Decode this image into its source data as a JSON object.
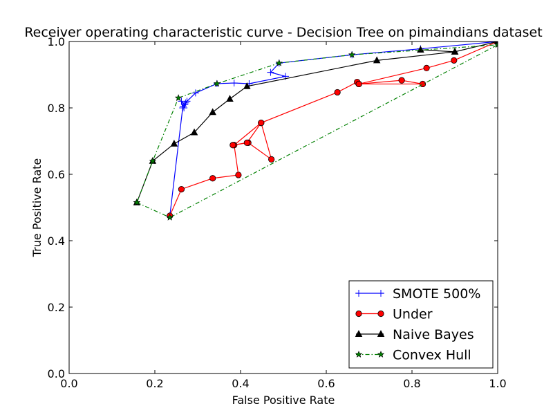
{
  "chart_data": {
    "type": "line",
    "title": "Receiver operating characteristic curve - Decision Tree on pimaindians dataset",
    "xlabel": "False Positive Rate",
    "ylabel": "True Positive Rate",
    "xlim": [
      0.0,
      1.0
    ],
    "ylim": [
      0.0,
      1.0
    ],
    "xticks": [
      "0.0",
      "0.2",
      "0.4",
      "0.6",
      "0.8",
      "1.0"
    ],
    "yticks": [
      "0.0",
      "0.2",
      "0.4",
      "0.6",
      "0.8",
      "1.0"
    ],
    "grid": false,
    "legend_position": "bottom-right",
    "series": [
      {
        "name": "SMOTE 500%",
        "color": "#0000ff",
        "linestyle": "solid",
        "marker": "plus",
        "x": [
          0.235,
          0.265,
          0.262,
          0.27,
          0.268,
          0.272,
          0.266,
          0.275,
          0.295,
          0.345,
          0.385,
          0.42,
          0.505,
          0.47,
          0.49,
          0.66,
          0.82,
          1.0
        ],
        "y": [
          0.475,
          0.8,
          0.82,
          0.81,
          0.8,
          0.815,
          0.805,
          0.82,
          0.845,
          0.873,
          0.875,
          0.873,
          0.895,
          0.907,
          0.935,
          0.96,
          0.978,
          1.0
        ]
      },
      {
        "name": "Under",
        "color": "#ff0000",
        "linestyle": "solid",
        "marker": "circle",
        "x": [
          0.235,
          0.262,
          0.335,
          0.395,
          0.385,
          0.448,
          0.472,
          0.418,
          0.382,
          0.415,
          0.448,
          0.626,
          0.672,
          0.676,
          0.825,
          0.776,
          0.676,
          0.834,
          0.898,
          1.0
        ],
        "y": [
          0.475,
          0.555,
          0.588,
          0.598,
          0.688,
          0.755,
          0.645,
          0.695,
          0.688,
          0.695,
          0.755,
          0.847,
          0.878,
          0.872,
          0.872,
          0.883,
          0.872,
          0.92,
          0.943,
          1.0
        ]
      },
      {
        "name": "Naive Bayes",
        "color": "#000000",
        "linestyle": "solid",
        "marker": "triangle",
        "x": [
          0.158,
          0.195,
          0.245,
          0.292,
          0.335,
          0.375,
          0.415,
          0.718,
          0.9,
          0.82,
          0.9,
          1.0
        ],
        "y": [
          0.515,
          0.64,
          0.692,
          0.726,
          0.787,
          0.827,
          0.865,
          0.943,
          0.969,
          0.975,
          0.969,
          1.0
        ]
      },
      {
        "name": "Convex Hull",
        "color": "#008000",
        "linestyle": "dashdot",
        "marker": "star",
        "x": [
          0.158,
          0.235,
          1.0,
          0.66,
          0.49,
          0.345,
          0.255,
          0.195,
          0.158
        ],
        "y": [
          0.515,
          0.47,
          0.99,
          0.96,
          0.935,
          0.873,
          0.83,
          0.64,
          0.515
        ]
      }
    ]
  }
}
